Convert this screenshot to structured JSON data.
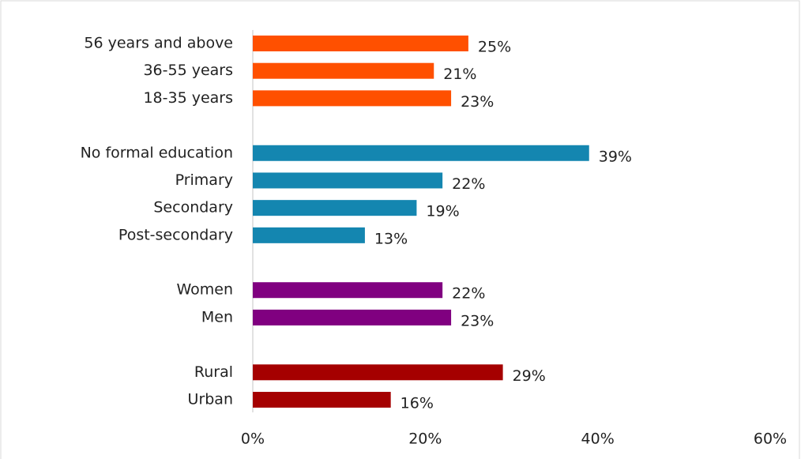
{
  "chart_data": {
    "type": "barh",
    "categories": [
      "56 years and above",
      "36-55 years",
      "18-35 years",
      null,
      "No formal education",
      "Primary",
      "Secondary",
      "Post-secondary",
      null,
      "Women",
      "Men",
      null,
      "Rural",
      "Urban"
    ],
    "values": [
      25,
      21,
      23,
      null,
      39,
      22,
      19,
      13,
      null,
      22,
      23,
      null,
      29,
      16
    ],
    "value_labels": [
      "25%",
      "21%",
      "23%",
      null,
      "39%",
      "22%",
      "19%",
      "13%",
      null,
      "22%",
      "23%",
      null,
      "29%",
      "16%"
    ],
    "colors": [
      "#ff5000",
      "#ff5000",
      "#ff5000",
      null,
      "#1486b0",
      "#1486b0",
      "#1486b0",
      "#1486b0",
      null,
      "#800080",
      "#800080",
      null,
      "#a50000",
      "#a50000"
    ],
    "xlim": [
      0,
      60
    ],
    "xticks": [
      {
        "value": 0,
        "label": "0%"
      },
      {
        "value": 20,
        "label": "20%"
      },
      {
        "value": 40,
        "label": "40%"
      },
      {
        "value": 60,
        "label": "60%"
      }
    ],
    "grid": false
  }
}
